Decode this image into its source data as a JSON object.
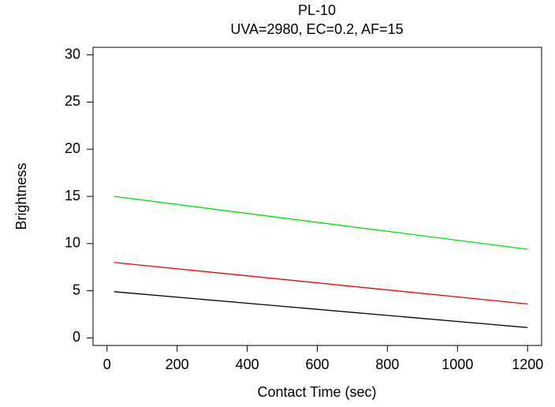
{
  "chart_data": {
    "type": "line",
    "title": "PL-10",
    "subtitle": "UVA=2980,  EC=0.2,  AF=15",
    "x_label": "Contact Time (sec)",
    "y_label": "Brightness",
    "x": [
      20,
      1200
    ],
    "series": [
      {
        "color": "#00e000",
        "values": [
          15.0,
          9.4
        ]
      },
      {
        "color": "#ff0000",
        "values": [
          8.0,
          3.6
        ]
      },
      {
        "color": "#000000",
        "values": [
          4.9,
          1.1
        ]
      }
    ],
    "xlim": [
      -40,
      1240
    ],
    "xticks": [
      0,
      200,
      400,
      600,
      800,
      1000,
      1200
    ],
    "ylim": [
      -0.8,
      30.8
    ],
    "yticks": [
      0,
      5,
      10,
      15,
      20,
      25,
      30
    ]
  }
}
